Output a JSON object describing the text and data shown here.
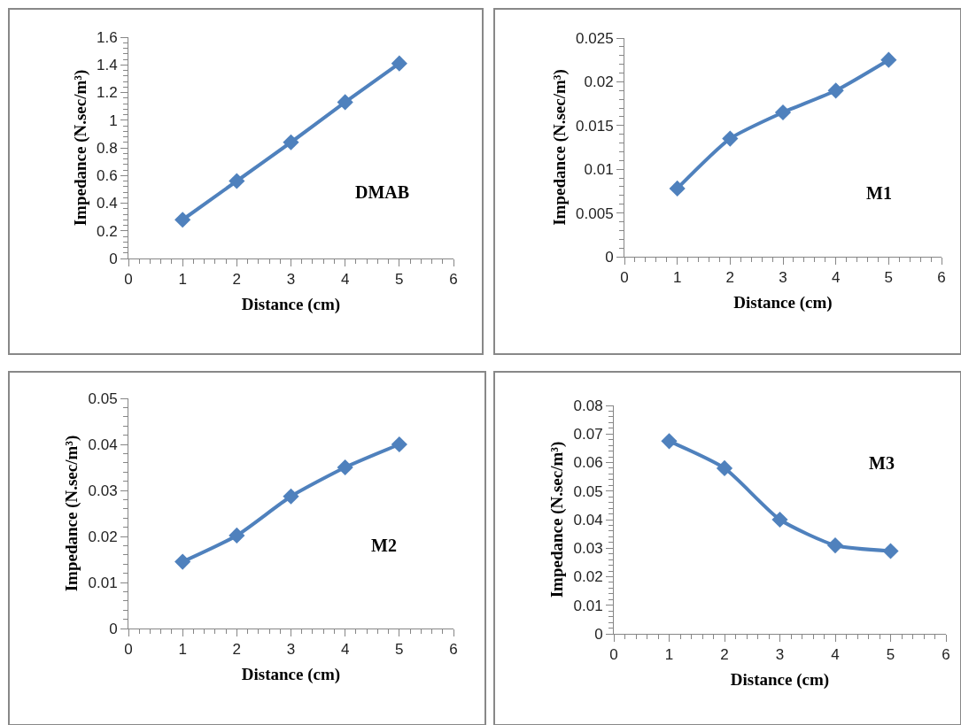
{
  "chart_data": [
    {
      "type": "line",
      "x": [
        1,
        2,
        3,
        4,
        5
      ],
      "xlabel": "Distance (cm)",
      "ylabel": "Impedance (N.sec/m³)",
      "annotations": [
        "DMAB"
      ],
      "xlim": [
        0,
        6
      ],
      "xticks": [
        0,
        1,
        2,
        3,
        4,
        5,
        6
      ],
      "ylim": [
        0,
        1.6
      ],
      "yticks": [
        0,
        0.2,
        0.4,
        0.6,
        0.8,
        1,
        1.2,
        1.4,
        1.6
      ],
      "marker": "diamond",
      "series": [
        {
          "color": "#4f81bd",
          "values": [
            0.28,
            0.56,
            0.84,
            1.13,
            1.41
          ]
        }
      ]
    },
    {
      "type": "line",
      "x": [
        1,
        2,
        3,
        4,
        5
      ],
      "xlabel": "Distance (cm)",
      "ylabel": "Impedance (N.sec/m³)",
      "annotations": [
        "M1"
      ],
      "xlim": [
        0,
        6
      ],
      "xticks": [
        0,
        1,
        2,
        3,
        4,
        5,
        6
      ],
      "ylim": [
        0,
        0.025
      ],
      "yticks": [
        0,
        0.005,
        0.01,
        0.015,
        0.02,
        0.025
      ],
      "marker": "diamond",
      "series": [
        {
          "color": "#4f81bd",
          "values": [
            0.0078,
            0.0135,
            0.0165,
            0.019,
            0.0225
          ]
        }
      ]
    },
    {
      "type": "line",
      "x": [
        1,
        2,
        3,
        4,
        5
      ],
      "xlabel": "Distance (cm)",
      "ylabel": "Impedance (N.sec/m³)",
      "annotations": [
        "M2"
      ],
      "xlim": [
        0,
        6
      ],
      "xticks": [
        0,
        1,
        2,
        3,
        4,
        5,
        6
      ],
      "ylim": [
        0,
        0.05
      ],
      "yticks": [
        0,
        0.01,
        0.02,
        0.03,
        0.04,
        0.05
      ],
      "marker": "diamond",
      "series": [
        {
          "color": "#4f81bd",
          "values": [
            0.0145,
            0.0202,
            0.0287,
            0.035,
            0.04
          ]
        }
      ]
    },
    {
      "type": "line",
      "x": [
        1,
        2,
        3,
        4,
        5
      ],
      "xlabel": "Distance (cm)",
      "ylabel": "Impedance (N.sec/m³)",
      "annotations": [
        "M3"
      ],
      "xlim": [
        0,
        6
      ],
      "xticks": [
        0,
        1,
        2,
        3,
        4,
        5,
        6
      ],
      "ylim": [
        0,
        0.08
      ],
      "yticks": [
        0,
        0.01,
        0.02,
        0.03,
        0.04,
        0.05,
        0.06,
        0.07,
        0.08
      ],
      "marker": "diamond",
      "series": [
        {
          "color": "#4f81bd",
          "values": [
            0.0675,
            0.058,
            0.04,
            0.031,
            0.029
          ]
        }
      ]
    }
  ]
}
